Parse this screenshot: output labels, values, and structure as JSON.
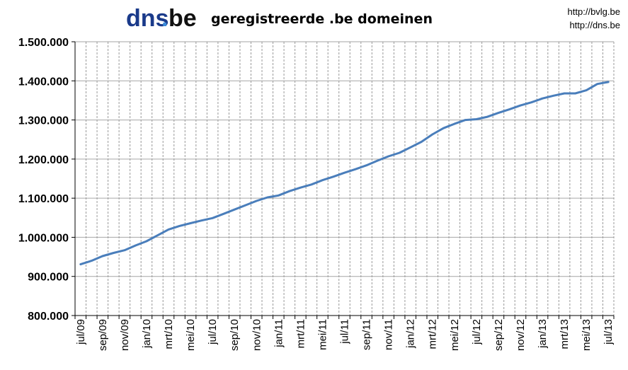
{
  "branding": {
    "logo_dns": "dns",
    "logo_dot": ".",
    "logo_be": "be",
    "logo_dns_color": "#1a3a8a",
    "logo_be_color": "#111111",
    "logo_dot_color": "#3a8ad8"
  },
  "links": {
    "url1": "http://bvlg.be",
    "url2": "http://dns.be"
  },
  "colors": {
    "line": "#4a7ebb",
    "grid": "#999999",
    "axis": "#000000",
    "background": "#ffffff"
  },
  "chart_data": {
    "type": "line",
    "title": "geregistreerde .be domeinen",
    "xlabel": "",
    "ylabel": "",
    "ylim": [
      800000,
      1500000
    ],
    "yticks": [
      "800.000",
      "900.000",
      "1.000.000",
      "1.100.000",
      "1.200.000",
      "1.300.000",
      "1.400.000",
      "1.500.000"
    ],
    "grid": true,
    "legend": "none",
    "x_tick_labels": [
      "jul/09",
      "sep/09",
      "nov/09",
      "jan/10",
      "mrt/10",
      "mei/10",
      "jul/10",
      "sep/10",
      "nov/10",
      "jan/11",
      "mrt/11",
      "mei/11",
      "jul/11",
      "sep/11",
      "nov/11",
      "jan/12",
      "mrt/12",
      "mei/12",
      "jul/12",
      "sep/12",
      "nov/12",
      "jan/13",
      "mrt/13",
      "mei/13",
      "jul/13"
    ],
    "x": [
      "jul/09",
      "aug/09",
      "sep/09",
      "okt/09",
      "nov/09",
      "dec/09",
      "jan/10",
      "feb/10",
      "mrt/10",
      "apr/10",
      "mei/10",
      "jun/10",
      "jul/10",
      "aug/10",
      "sep/10",
      "okt/10",
      "nov/10",
      "dec/10",
      "jan/11",
      "feb/11",
      "mrt/11",
      "apr/11",
      "mei/11",
      "jun/11",
      "jul/11",
      "aug/11",
      "sep/11",
      "okt/11",
      "nov/11",
      "dec/11",
      "jan/12",
      "feb/12",
      "mrt/12",
      "apr/12",
      "mei/12",
      "jun/12",
      "jul/12",
      "aug/12",
      "sep/12",
      "okt/12",
      "nov/12",
      "dec/12",
      "jan/13",
      "feb/13",
      "mrt/13",
      "apr/13",
      "mei/13",
      "jun/13",
      "jul/13"
    ],
    "series": [
      {
        "values": [
          931000,
          940000,
          952000,
          960000,
          967000,
          979000,
          990000,
          1005000,
          1020000,
          1029000,
          1036000,
          1043000,
          1049000,
          1060000,
          1071000,
          1082000,
          1093000,
          1102000,
          1107000,
          1118000,
          1127000,
          1135000,
          1146000,
          1155000,
          1165000,
          1174000,
          1184000,
          1196000,
          1207000,
          1216000,
          1230000,
          1244000,
          1263000,
          1279000,
          1290000,
          1300000,
          1302000,
          1308000,
          1318000,
          1327000,
          1337000,
          1345000,
          1355000,
          1362000,
          1368000,
          1368000,
          1376000,
          1392000,
          1397000
        ]
      }
    ]
  }
}
